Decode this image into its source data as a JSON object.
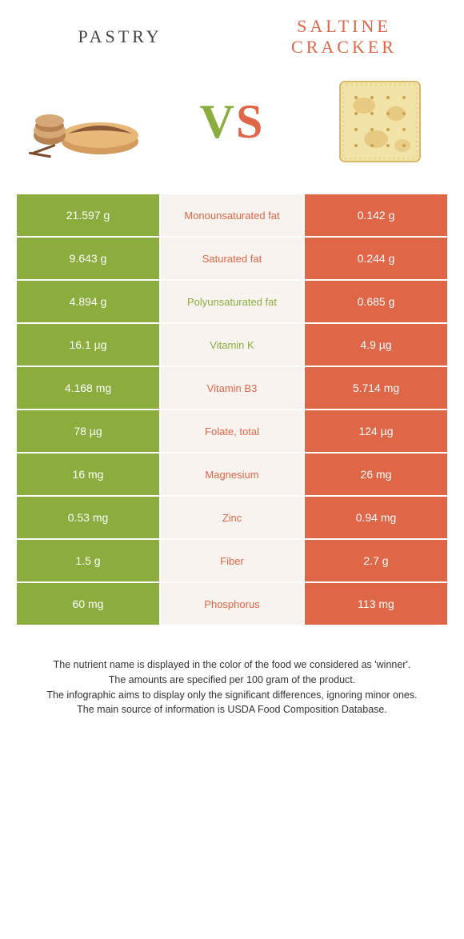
{
  "header": {
    "left_title": "PASTRY",
    "right_title": "SALTINE CRACKER",
    "vs_v": "V",
    "vs_s": "S"
  },
  "colors": {
    "green": "#8aad3d",
    "orange": "#e06648",
    "mid_bg": "#f9f3ef",
    "text_dark": "#333333",
    "white": "#ffffff"
  },
  "table": {
    "rows": [
      {
        "left": "21.597 g",
        "label": "Monounsaturated fat",
        "right": "0.142 g",
        "winner": "orange"
      },
      {
        "left": "9.643 g",
        "label": "Saturated fat",
        "right": "0.244 g",
        "winner": "orange"
      },
      {
        "left": "4.894 g",
        "label": "Polyunsaturated fat",
        "right": "0.685 g",
        "winner": "green"
      },
      {
        "left": "16.1 µg",
        "label": "Vitamin K",
        "right": "4.9 µg",
        "winner": "green"
      },
      {
        "left": "4.168 mg",
        "label": "Vitamin B3",
        "right": "5.714 mg",
        "winner": "orange"
      },
      {
        "left": "78 µg",
        "label": "Folate, total",
        "right": "124 µg",
        "winner": "orange"
      },
      {
        "left": "16 mg",
        "label": "Magnesium",
        "right": "26 mg",
        "winner": "orange"
      },
      {
        "left": "0.53 mg",
        "label": "Zinc",
        "right": "0.94 mg",
        "winner": "orange"
      },
      {
        "left": "1.5 g",
        "label": "Fiber",
        "right": "2.7 g",
        "winner": "orange"
      },
      {
        "left": "60 mg",
        "label": "Phosphorus",
        "right": "113 mg",
        "winner": "orange"
      }
    ]
  },
  "footnote": {
    "line1": "The nutrient name is displayed in the color of the food we considered as 'winner'.",
    "line2": "The amounts are specified per 100 gram of the product.",
    "line3": "The infographic aims to display only the significant differences, ignoring minor ones.",
    "line4": "The main source of information is USDA Food Composition Database."
  }
}
